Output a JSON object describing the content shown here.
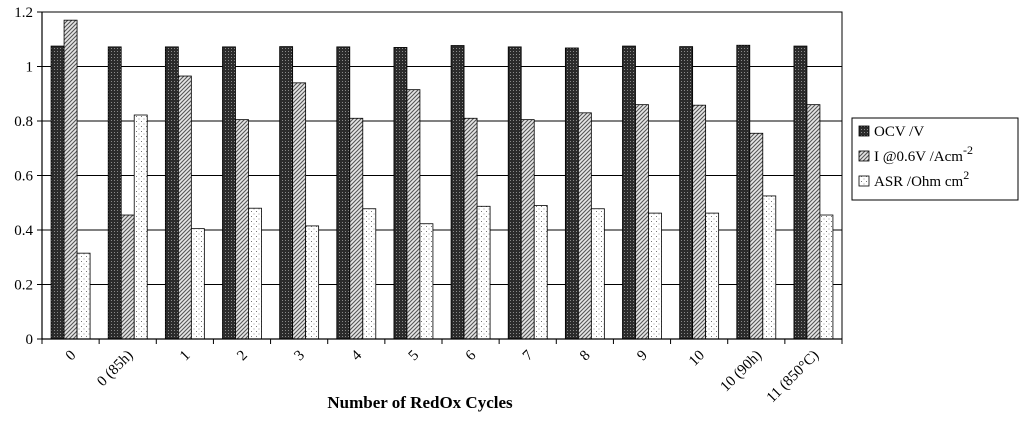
{
  "chart_data": {
    "type": "bar",
    "xlabel": "Number of RedOx Cycles",
    "ylabel": "",
    "ylim": [
      0,
      1.2
    ],
    "yticks": [
      "0",
      "0.2",
      "0.4",
      "0.6",
      "0.8",
      "1",
      "1.2"
    ],
    "grid": true,
    "legend_position": "right",
    "categories": [
      "0",
      "0 (85h)",
      "1",
      "2",
      "3",
      "4",
      "5",
      "6",
      "7",
      "8",
      "9",
      "10",
      "10 (90h)",
      "11 (850°C)"
    ],
    "series": [
      {
        "name": "OCV /V",
        "name_sup": "",
        "pattern": "dark-dots",
        "values": [
          1.075,
          1.072,
          1.072,
          1.072,
          1.073,
          1.072,
          1.07,
          1.077,
          1.072,
          1.068,
          1.075,
          1.073,
          1.078,
          1.075
        ]
      },
      {
        "name": "I @0.6V /Acm",
        "name_sup": "-2",
        "pattern": "diagonal-hatch",
        "values": [
          1.17,
          0.455,
          0.965,
          0.805,
          0.94,
          0.81,
          0.915,
          0.81,
          0.805,
          0.83,
          0.86,
          0.858,
          0.755,
          0.86
        ]
      },
      {
        "name": "ASR /Ohm cm",
        "name_sup": "2",
        "pattern": "light-dots",
        "values": [
          0.315,
          0.822,
          0.405,
          0.48,
          0.415,
          0.478,
          0.423,
          0.487,
          0.49,
          0.478,
          0.462,
          0.462,
          0.525,
          0.455
        ]
      }
    ]
  }
}
